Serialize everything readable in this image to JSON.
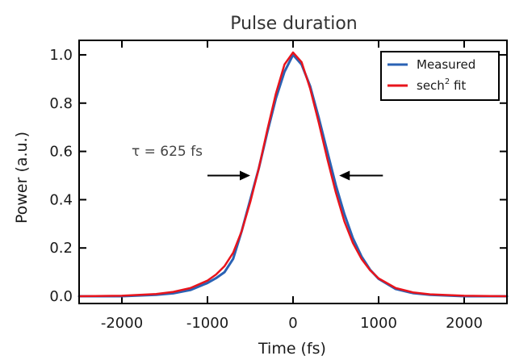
{
  "chart_data": {
    "type": "line",
    "title": "Pulse duration",
    "xlabel": "Time (fs)",
    "ylabel": "Power (a.u.)",
    "xlim": [
      -2500,
      2500
    ],
    "ylim": [
      -0.03,
      1.06
    ],
    "xticks": [
      -2000,
      -1000,
      0,
      1000,
      2000
    ],
    "xtick_labels": [
      "-2000",
      "-1000",
      "0",
      "1000",
      "2000"
    ],
    "yticks": [
      0.0,
      0.2,
      0.4,
      0.6,
      0.8,
      1.0
    ],
    "ytick_labels": [
      "0.0",
      "0.2",
      "0.4",
      "0.6",
      "0.8",
      "1.0"
    ],
    "grid": false,
    "legend_position": "top-right",
    "legend": [
      {
        "label": "Measured",
        "sup": "",
        "suffix": ""
      },
      {
        "label": "sech",
        "sup": "2",
        "suffix": " fit"
      }
    ],
    "annotation": {
      "text": "τ = 625 fs",
      "fwhm_fs": 625,
      "arrow_level": 0.5,
      "left_arrow_x": [
        -1000,
        -500
      ],
      "right_arrow_x": [
        1050,
        540
      ]
    },
    "series": [
      {
        "name": "Measured",
        "color": "#2a62b4",
        "x": [
          -2500,
          -2000,
          -1600,
          -1400,
          -1200,
          -1000,
          -900,
          -800,
          -700,
          -600,
          -500,
          -400,
          -300,
          -200,
          -100,
          0,
          100,
          200,
          300,
          400,
          500,
          600,
          700,
          800,
          900,
          1000,
          1200,
          1400,
          1600,
          2000,
          2500
        ],
        "y": [
          0.0,
          0.0,
          0.006,
          0.012,
          0.026,
          0.055,
          0.075,
          0.1,
          0.155,
          0.27,
          0.4,
          0.53,
          0.68,
          0.82,
          0.93,
          1.0,
          0.96,
          0.87,
          0.74,
          0.6,
          0.46,
          0.34,
          0.24,
          0.165,
          0.11,
          0.072,
          0.03,
          0.013,
          0.006,
          0.0,
          0.0
        ]
      },
      {
        "name": "sech2 fit",
        "color": "#e8141c",
        "x": [
          -2500,
          -2000,
          -1600,
          -1400,
          -1200,
          -1000,
          -900,
          -800,
          -700,
          -600,
          -500,
          -400,
          -300,
          -200,
          -100,
          0,
          100,
          200,
          300,
          400,
          500,
          600,
          700,
          800,
          900,
          1000,
          1200,
          1400,
          1600,
          2000,
          2500
        ],
        "y": [
          0.0,
          0.002,
          0.009,
          0.018,
          0.034,
          0.065,
          0.09,
          0.125,
          0.18,
          0.27,
          0.39,
          0.53,
          0.69,
          0.84,
          0.96,
          1.01,
          0.97,
          0.86,
          0.72,
          0.57,
          0.43,
          0.31,
          0.22,
          0.155,
          0.108,
          0.074,
          0.034,
          0.016,
          0.008,
          0.002,
          0.0
        ]
      }
    ]
  }
}
